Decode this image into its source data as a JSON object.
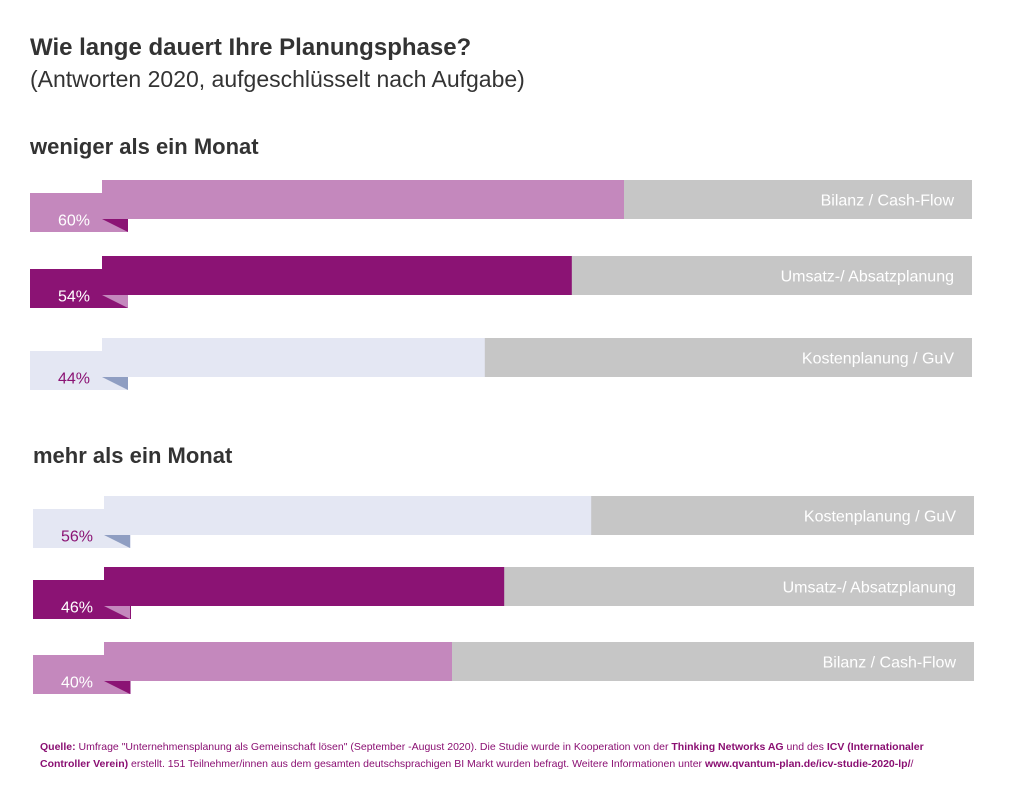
{
  "title": "Wie lange dauert Ihre Planungsphase?",
  "subtitle": "(Antworten 2020, aufgeschlüsselt nach Aufgabe)",
  "colors": {
    "track": "#c6c6c6",
    "bilanz": "#c488bd",
    "umsatz": "#8b1374",
    "kosten": "#e4e7f3",
    "kosten_fold": "#8f9ec2",
    "label_light": "#ffffff",
    "label_purple": "#8b1374"
  },
  "chart_data": [
    {
      "type": "bar",
      "title": "weniger als ein Monat",
      "xlim": [
        0,
        100
      ],
      "categories": [
        "Bilanz / Cash-Flow",
        "Umsatz-/ Absatzplanung",
        "Kostenplanung / GuV"
      ],
      "values": [
        60,
        54,
        44
      ],
      "value_labels": [
        "60%",
        "54%",
        "44%"
      ]
    },
    {
      "type": "bar",
      "title": "mehr als ein Monat",
      "xlim": [
        0,
        100
      ],
      "categories": [
        "Kostenplanung / GuV",
        "Umsatz-/ Absatzplanung",
        "Bilanz / Cash-Flow"
      ],
      "values": [
        56,
        46,
        40
      ],
      "value_labels": [
        "56%",
        "46%",
        "40%"
      ]
    }
  ],
  "source": {
    "label": "Quelle:",
    "text1": " Umfrage \"Unternehmensplanung als Gemeinschaft lösen\" (September -August 2020). Die Studie wurde in Kooperation von der ",
    "org1": "Thinking Networks AG",
    "text2": " und des ",
    "org2": "ICV (Internationaler Controller Verein)",
    "text3": " erstellt. 151 Teilnehmer/innen aus dem gesamten deutschsprachigen BI Markt wurden befragt. Weitere Informationen unter ",
    "url": "www.qvantum-plan.de/icv-studie-2020-lp/"
  }
}
